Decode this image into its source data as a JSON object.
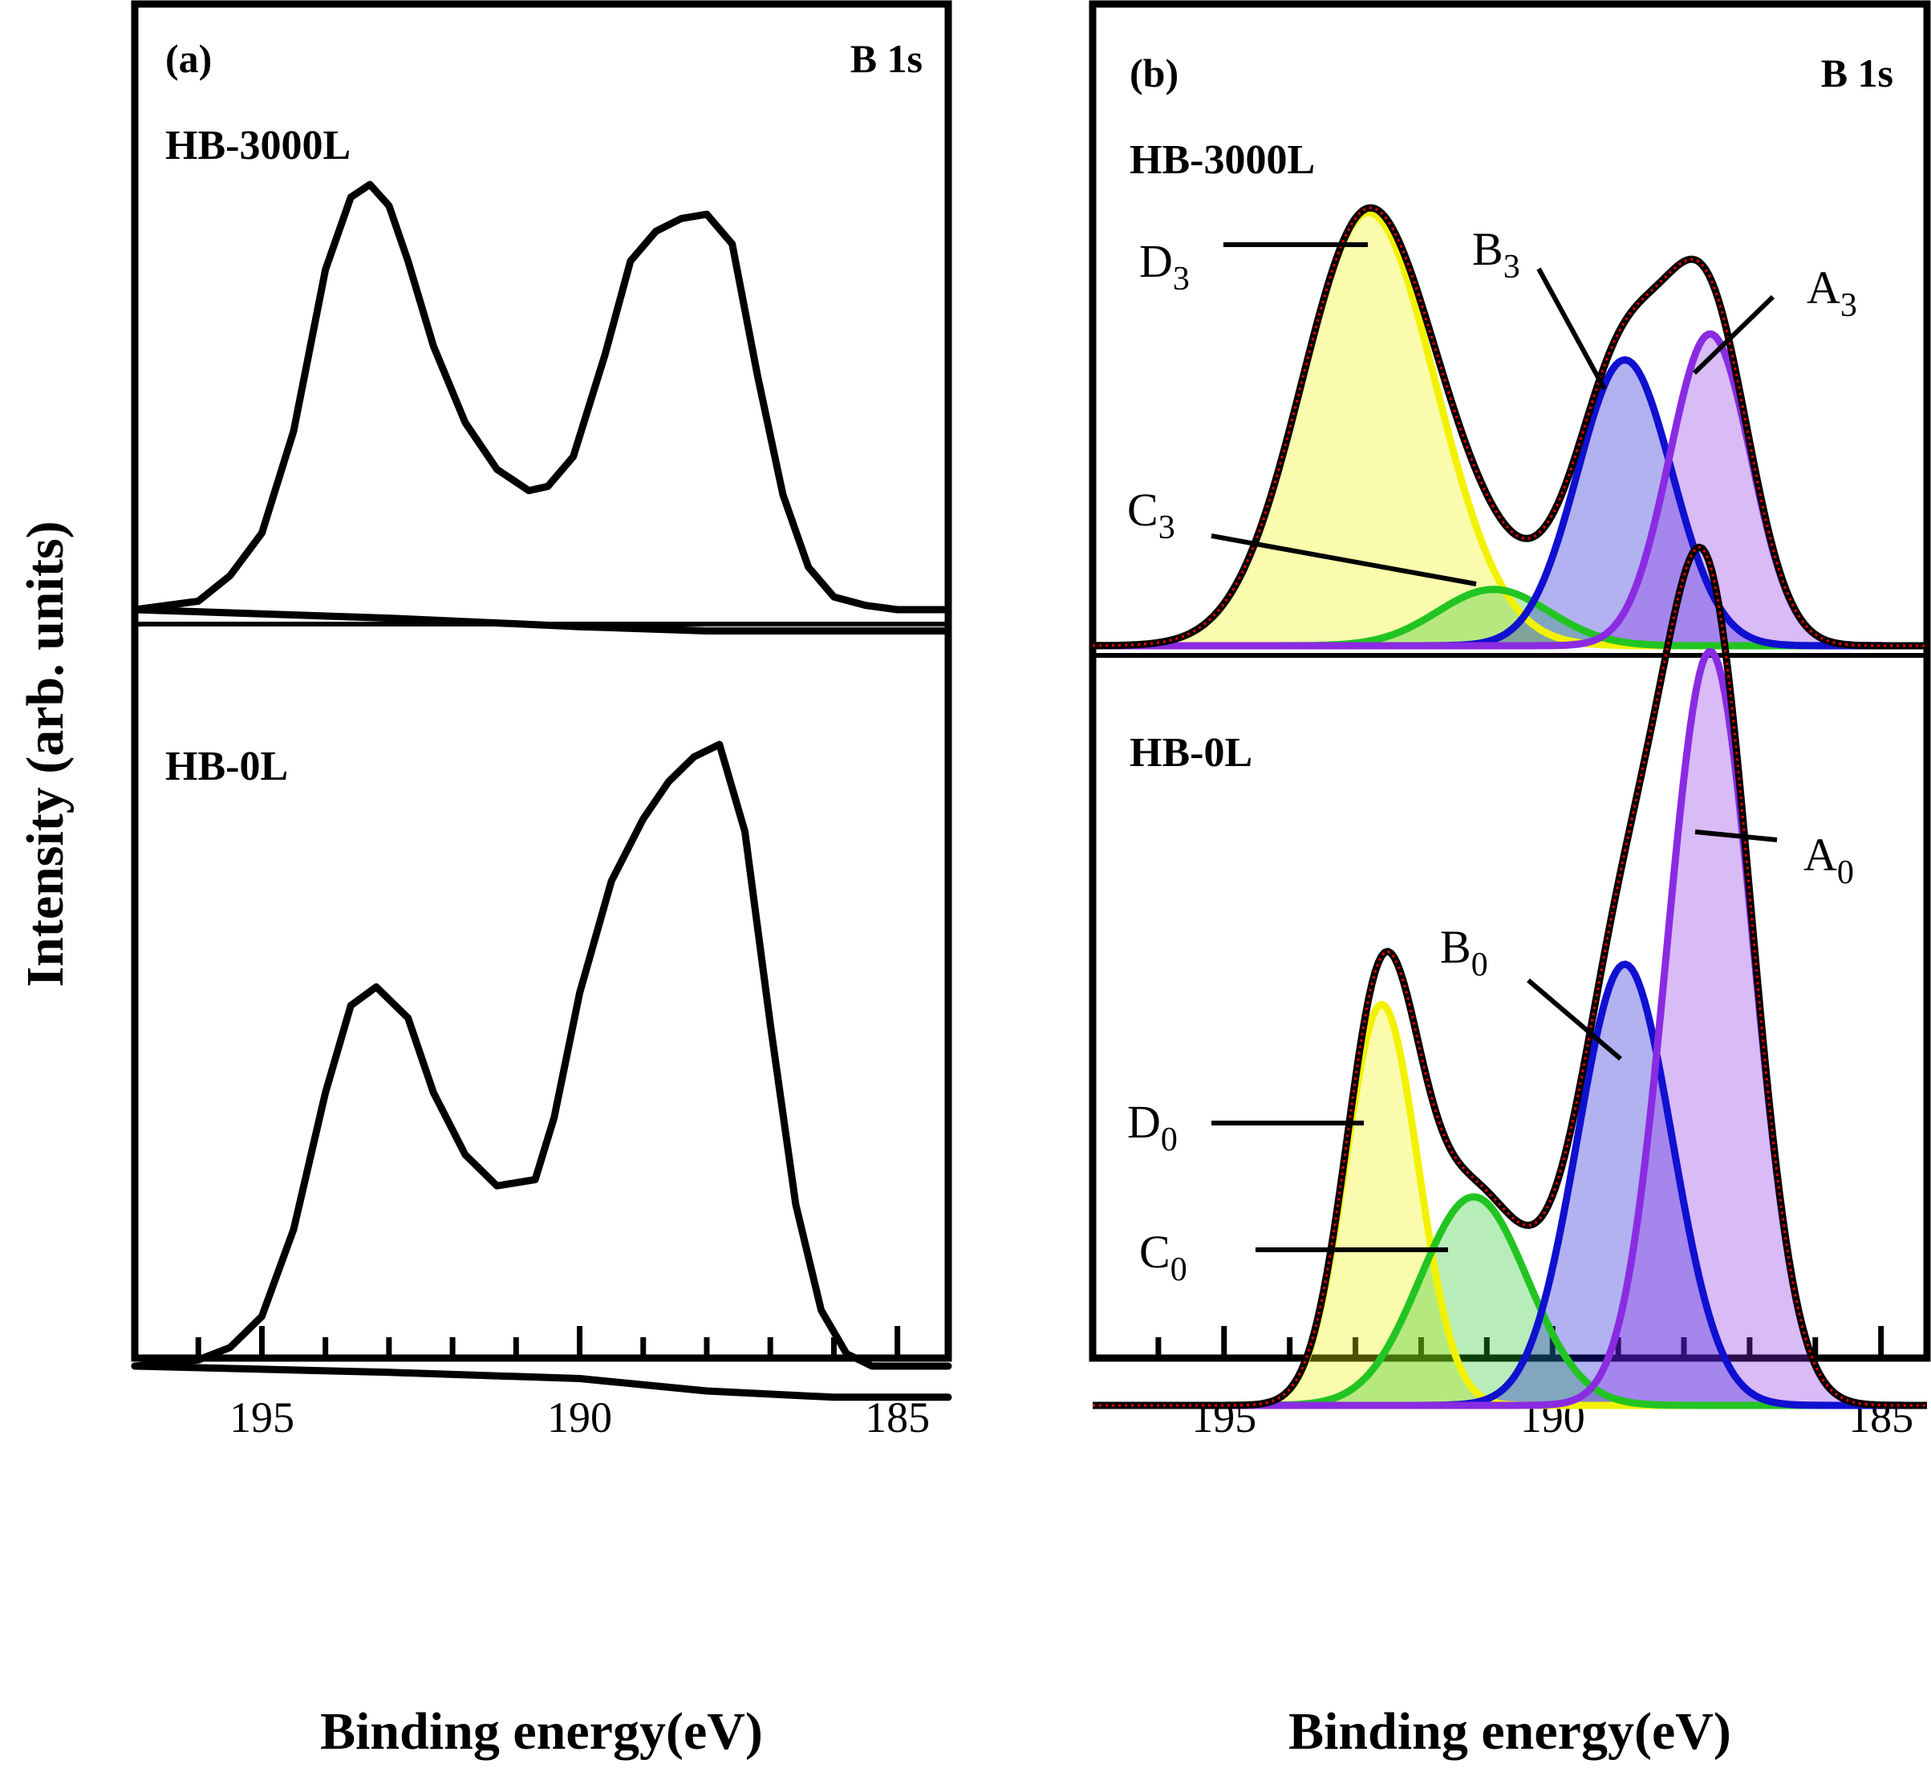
{
  "figure": {
    "ylabel": "Intensity (arb. units)"
  },
  "chart_data": [
    {
      "type": "line",
      "panel": "(a)",
      "title": "B 1s",
      "xlabel": "Binding energy(eV)",
      "ylabel": "Intensity (arb. units)",
      "x_reversed": true,
      "xlim": [
        197.0,
        184.2
      ],
      "x_ticks": [
        195,
        190,
        185
      ],
      "y_ticks": [],
      "series": [
        {
          "name": "HB-3000L",
          "x": [
            197,
            196,
            195.5,
            195,
            194.5,
            194,
            193.6,
            193.3,
            193.0,
            192.7,
            192.3,
            191.8,
            191.3,
            190.8,
            190.5,
            190.1,
            189.6,
            189.2,
            188.8,
            188.4,
            188.0,
            187.6,
            187.2,
            186.8,
            186.4,
            186.0,
            185.5,
            185.0,
            184.5,
            184.2
          ],
          "y": [
            0.0,
            0.02,
            0.08,
            0.18,
            0.42,
            0.8,
            0.97,
            1.0,
            0.95,
            0.82,
            0.62,
            0.44,
            0.33,
            0.28,
            0.29,
            0.36,
            0.6,
            0.82,
            0.89,
            0.92,
            0.93,
            0.86,
            0.55,
            0.27,
            0.1,
            0.03,
            0.01,
            0.0,
            0.0,
            0.0
          ]
        },
        {
          "name": "HB-3000L background",
          "x": [
            197,
            193,
            190,
            188,
            186,
            184.2
          ],
          "y": [
            0.0,
            -0.02,
            -0.04,
            -0.05,
            -0.05,
            -0.05
          ]
        },
        {
          "name": "HB-0L",
          "x": [
            197,
            196,
            195.5,
            195,
            194.5,
            194.0,
            193.6,
            193.2,
            192.7,
            192.3,
            191.8,
            191.3,
            190.7,
            190.4,
            190.0,
            189.5,
            189.0,
            188.6,
            188.2,
            187.8,
            187.4,
            187.0,
            186.6,
            186.2,
            185.8,
            185.4,
            185.0,
            184.5,
            184.2
          ],
          "y": [
            0.0,
            0.01,
            0.03,
            0.08,
            0.22,
            0.44,
            0.58,
            0.61,
            0.56,
            0.44,
            0.34,
            0.29,
            0.3,
            0.4,
            0.6,
            0.78,
            0.88,
            0.94,
            0.98,
            1.0,
            0.86,
            0.55,
            0.26,
            0.09,
            0.02,
            0.0,
            0.0,
            0.0,
            0.0
          ]
        },
        {
          "name": "HB-0L background",
          "x": [
            197,
            193,
            190,
            188,
            186,
            184.2
          ],
          "y": [
            0.0,
            -0.01,
            -0.02,
            -0.04,
            -0.05,
            -0.05
          ]
        }
      ],
      "annotations": [
        "HB-3000L",
        "HB-0L"
      ]
    },
    {
      "type": "area",
      "panel": "(b)",
      "title": "B 1s",
      "xlabel": "Binding energy(eV)",
      "ylabel": "Intensity (arb. units)",
      "x_reversed": true,
      "xlim": [
        197.0,
        184.3
      ],
      "x_ticks": [
        195,
        190,
        185
      ],
      "y_ticks": [],
      "gaussian_components": {
        "HB-3000L": [
          {
            "name": "D3",
            "center": 192.8,
            "height": 1.0,
            "sigma": 1.02,
            "color": "#f2f200"
          },
          {
            "name": "C3",
            "center": 190.9,
            "height": 0.13,
            "sigma": 0.85,
            "color": "#22c422"
          },
          {
            "name": "B3",
            "center": 188.9,
            "height": 0.66,
            "sigma": 0.72,
            "color": "#1010d0"
          },
          {
            "name": "A3",
            "center": 187.6,
            "height": 0.72,
            "sigma": 0.62,
            "color": "#8a2be2"
          }
        ],
        "HB-0L": [
          {
            "name": "D0",
            "center": 192.6,
            "height": 0.5,
            "sigma": 0.55,
            "color": "#f2f200"
          },
          {
            "name": "C0",
            "center": 191.2,
            "height": 0.26,
            "sigma": 0.82,
            "color": "#22c422"
          },
          {
            "name": "B0",
            "center": 188.9,
            "height": 0.55,
            "sigma": 0.72,
            "color": "#1010d0"
          },
          {
            "name": "A0",
            "center": 187.6,
            "height": 0.94,
            "sigma": 0.66,
            "color": "#8a2be2"
          }
        ]
      },
      "series_styles": {
        "experimental": "#000000",
        "fit_envelope_dotted": "#ff0000"
      },
      "annotations": [
        "HB-3000L",
        "HB-0L",
        "D3",
        "C3",
        "B3",
        "A3",
        "D0",
        "C0",
        "B0",
        "A0"
      ]
    }
  ]
}
